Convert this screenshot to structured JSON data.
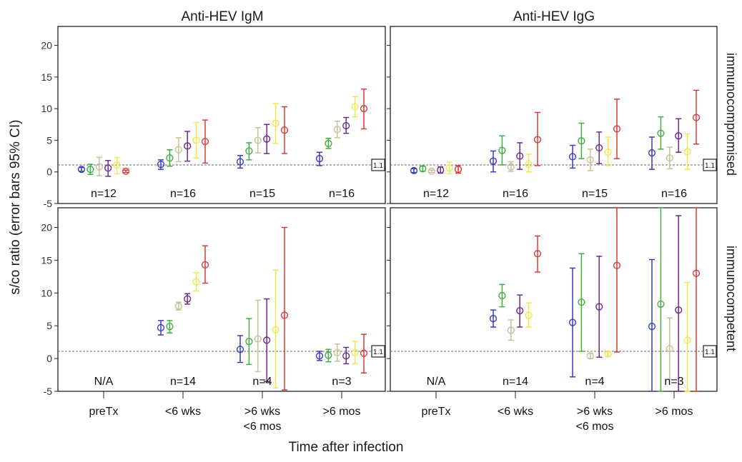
{
  "chart_data": {
    "type": "errorbar",
    "panel_titles": [
      "Anti-HEV IgM",
      "Anti-HEV IgG"
    ],
    "row_labels": [
      "immunocompromised",
      "immunocompetent"
    ],
    "ylabel": "s/co ratio (error bars 95% CI)",
    "xlabel": "Time after infection",
    "categories": [
      "preTx",
      "<6 wks",
      ">6 wks\n<6 mos",
      ">6 mos"
    ],
    "ylim": [
      -5,
      23
    ],
    "yticks": [
      -5,
      0,
      5,
      10,
      15,
      20
    ],
    "cutoff": {
      "value": 1.1,
      "label": "1.1"
    },
    "series_colors": [
      "#3b3bbf",
      "#3fae3f",
      "#c8c09a",
      "#6a2a8a",
      "#f0e84a",
      "#d63a3a"
    ],
    "panels": [
      {
        "id": "igm-immunocompromised",
        "n_labels": [
          "n=12",
          "n=16",
          "n=15",
          "n=16"
        ],
        "groups": [
          [
            [
              0.4,
              0.1,
              0.7
            ],
            [
              0.4,
              -0.4,
              1.2
            ],
            [
              0.8,
              -0.6,
              2.3
            ],
            [
              0.6,
              -0.7,
              1.8
            ],
            [
              1.1,
              -0.3,
              2.3
            ],
            [
              0.1,
              -0.1,
              0.3
            ]
          ],
          [
            [
              1.2,
              0.4,
              1.9
            ],
            [
              2.2,
              0.9,
              3.5
            ],
            [
              3.5,
              1.6,
              5.4
            ],
            [
              4.1,
              1.7,
              6.4
            ],
            [
              5,
              2.2,
              7.8
            ],
            [
              4.8,
              1.4,
              8.2
            ]
          ],
          [
            [
              1.6,
              0.6,
              2.6
            ],
            [
              3.3,
              1.9,
              4.6
            ],
            [
              5,
              3,
              7
            ],
            [
              5.2,
              2.9,
              7.5
            ],
            [
              7.7,
              4.5,
              10.8
            ],
            [
              6.6,
              2.9,
              10.3
            ]
          ],
          [
            [
              2.1,
              1,
              3.1
            ],
            [
              4.5,
              3.7,
              5.3
            ],
            [
              6.7,
              5.4,
              8.0
            ],
            [
              7.3,
              6.1,
              8.6
            ],
            [
              10.3,
              8.7,
              11.9
            ],
            [
              10,
              6.8,
              13.1
            ]
          ]
        ]
      },
      {
        "id": "igg-immunocompromised",
        "n_labels": [
          "n=12",
          "n=16",
          "n=15",
          "n=16"
        ],
        "groups": [
          [
            [
              0.2,
              -0.1,
              0.5
            ],
            [
              0.5,
              0.1,
              0.9
            ],
            [
              0.1,
              -0.1,
              0.3
            ],
            [
              0.3,
              -0.2,
              0.8
            ],
            [
              0.6,
              -0.3,
              1.5
            ],
            [
              0.4,
              -0.2,
              1
            ]
          ],
          [
            [
              1.7,
              0,
              3.3
            ],
            [
              3.4,
              1.1,
              5.7
            ],
            [
              0.8,
              0.1,
              1.6
            ],
            [
              2.5,
              0.4,
              4.6
            ],
            [
              1.2,
              0,
              2.8
            ],
            [
              5.1,
              1,
              9.4
            ]
          ],
          [
            [
              2.4,
              0.6,
              4.2
            ],
            [
              4.9,
              2.1,
              7.7
            ],
            [
              1.9,
              0.2,
              3.6
            ],
            [
              3.8,
              1.3,
              6.3
            ],
            [
              3.1,
              1,
              5.5
            ],
            [
              6.8,
              2.1,
              11.5
            ]
          ],
          [
            [
              3,
              0.4,
              5.5
            ],
            [
              6.1,
              3.6,
              8.7
            ],
            [
              2.2,
              0.5,
              3.9
            ],
            [
              5.7,
              3.1,
              8.4
            ],
            [
              3.2,
              0.4,
              6
            ],
            [
              8.6,
              4.4,
              12.9
            ]
          ]
        ]
      },
      {
        "id": "igm-immunocompetent",
        "n_labels": [
          "N/A",
          "n=14",
          "n=4",
          "n=3"
        ],
        "groups": [
          [],
          [
            [
              4.7,
              3.6,
              5.8
            ],
            [
              4.9,
              3.9,
              5.8
            ],
            [
              8,
              7.4,
              8.6
            ],
            [
              9.1,
              8.3,
              9.9
            ],
            [
              11.7,
              10.3,
              13.1
            ],
            [
              14.3,
              11.5,
              17.2
            ]
          ],
          [
            [
              1.4,
              -0.6,
              3.5
            ],
            [
              2.6,
              -0.9,
              6.1
            ],
            [
              3,
              -2,
              8.9
            ],
            [
              2.8,
              -3.5,
              9.1
            ],
            [
              4.4,
              -4.5,
              13.5
            ],
            [
              6.6,
              -4.8,
              20
            ]
          ],
          [
            [
              0.4,
              -0.3,
              1.1
            ],
            [
              0.5,
              -0.5,
              1.4
            ],
            [
              0.9,
              -0.4,
              2.2
            ],
            [
              0.4,
              -0.8,
              1.7
            ],
            [
              0.9,
              -0.8,
              2.6
            ],
            [
              0.8,
              -2.2,
              3.7
            ]
          ]
        ]
      },
      {
        "id": "igg-immunocompetent",
        "n_labels": [
          "N/A",
          "n=14",
          "n=4",
          "n=3"
        ],
        "groups": [
          [],
          [
            [
              6.1,
              4.8,
              7.4
            ],
            [
              9.6,
              7.9,
              11.3
            ],
            [
              4.3,
              2.8,
              5.9
            ],
            [
              7.3,
              4.8,
              9.7
            ],
            [
              6.6,
              4.8,
              8.5
            ],
            [
              16,
              13.2,
              18.7
            ]
          ],
          [
            [
              5.5,
              -2.8,
              13.8
            ],
            [
              8.6,
              1.1,
              16
            ],
            [
              0.4,
              0,
              0.8
            ],
            [
              7.9,
              0.2,
              15.6
            ],
            [
              0.7,
              0.4,
              1
            ],
            [
              14.2,
              1,
              23
            ]
          ],
          [
            [
              4.9,
              -5,
              15.1
            ],
            [
              8.3,
              -5,
              23
            ],
            [
              1.5,
              -3.2,
              6.2
            ],
            [
              7.4,
              -5,
              21.8
            ],
            [
              2.8,
              -5,
              11.6
            ],
            [
              13,
              -5,
              23
            ]
          ]
        ]
      }
    ]
  }
}
